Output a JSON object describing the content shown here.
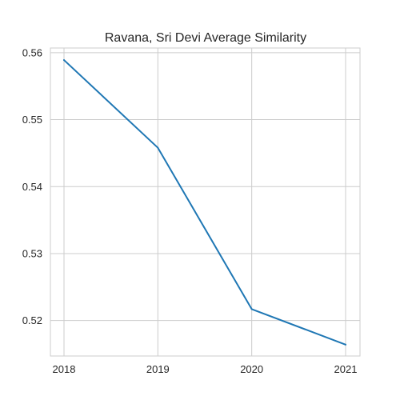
{
  "chart_data": {
    "type": "line",
    "title": "Ravana, Sri Devi Average Similarity",
    "xlabel": "",
    "ylabel": "",
    "x": [
      "2018",
      "2019",
      "2020",
      "2021"
    ],
    "series": [
      {
        "values": [
          0.5589,
          0.5458,
          0.5217,
          0.5164
        ],
        "color": "#1f77b4"
      }
    ],
    "y_ticks": [
      "0.52",
      "0.53",
      "0.54",
      "0.55",
      "0.56"
    ],
    "ylim": [
      0.5147,
      0.5607
    ],
    "grid": true,
    "legend": "none"
  }
}
